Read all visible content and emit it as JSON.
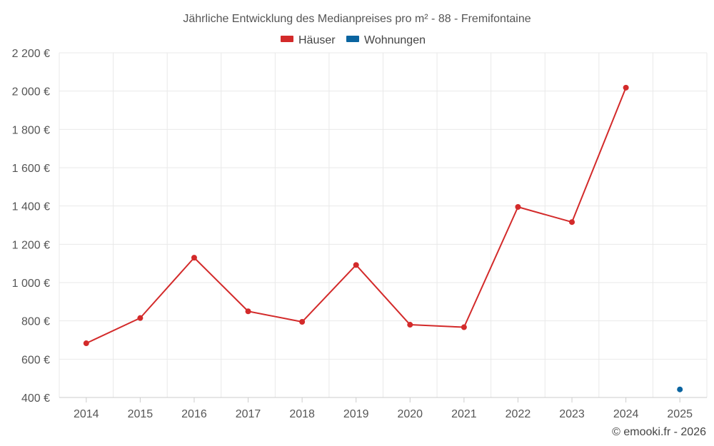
{
  "chart_data": {
    "type": "line",
    "title": "Jährliche Entwicklung des Medianpreises pro m² - 88 - Fremifontaine",
    "categories": [
      "2014",
      "2015",
      "2016",
      "2017",
      "2018",
      "2019",
      "2020",
      "2021",
      "2022",
      "2023",
      "2024",
      "2025"
    ],
    "series": [
      {
        "name": "Häuser",
        "color": "#d32a2a",
        "values": [
          683,
          815,
          1130,
          850,
          795,
          1092,
          780,
          767,
          1395,
          1316,
          2018,
          null
        ]
      },
      {
        "name": "Wohnungen",
        "color": "#0a64a0",
        "values": [
          null,
          null,
          null,
          null,
          null,
          null,
          null,
          null,
          null,
          null,
          null,
          442
        ]
      }
    ],
    "ylim": [
      400,
      2200
    ],
    "yticks": [
      400,
      600,
      800,
      1000,
      1200,
      1400,
      1600,
      1800,
      2000,
      2200
    ],
    "ytick_labels": [
      "400 €",
      "600 €",
      "800 €",
      "1 000 €",
      "1 200 €",
      "1 400 €",
      "1 600 €",
      "1 800 €",
      "2 000 €",
      "2 200 €"
    ],
    "grid": true,
    "legend_position": "top-center"
  },
  "credit": "© emooki.fr - 2026"
}
